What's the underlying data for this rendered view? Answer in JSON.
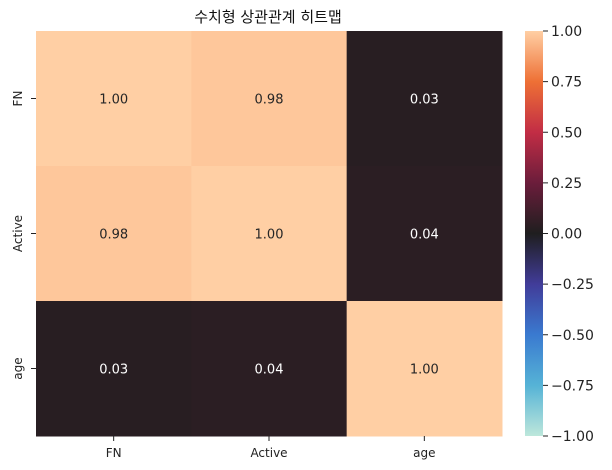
{
  "chart_data": {
    "type": "heatmap",
    "title": "수치형 상관관계 히트맵",
    "xlabel": "",
    "ylabel": "",
    "x_categories": [
      "FN",
      "Active",
      "age"
    ],
    "y_categories": [
      "FN",
      "Active",
      "age"
    ],
    "values": [
      [
        1.0,
        0.98,
        0.03
      ],
      [
        0.98,
        1.0,
        0.04
      ],
      [
        0.03,
        0.04,
        1.0
      ]
    ],
    "annotations": [
      [
        "1.00",
        "0.98",
        "0.03"
      ],
      [
        "0.98",
        "1.00",
        "0.04"
      ],
      [
        "0.03",
        "0.04",
        "1.00"
      ]
    ],
    "vrange": [
      -1.0,
      1.0
    ],
    "colormap": "icefire",
    "colorbar": {
      "ticks": [
        1.0,
        0.75,
        0.5,
        0.25,
        0.0,
        -0.25,
        -0.5,
        -0.75,
        -1.0
      ],
      "tick_labels": [
        "1.00",
        "0.75",
        "0.50",
        "0.25",
        "0.00",
        "−0.25",
        "−0.50",
        "−0.75",
        "−1.00"
      ],
      "stops": [
        {
          "v": -1.0,
          "color": "#bde7db"
        },
        {
          "v": -0.75,
          "color": "#56b3d6"
        },
        {
          "v": -0.5,
          "color": "#3a7ad0"
        },
        {
          "v": -0.25,
          "color": "#413c99"
        },
        {
          "v": 0.0,
          "color": "#1f1e1f"
        },
        {
          "v": 0.25,
          "color": "#6b1d3b"
        },
        {
          "v": 0.5,
          "color": "#c22d45"
        },
        {
          "v": 0.75,
          "color": "#ee7035"
        },
        {
          "v": 1.0,
          "color": "#ffcfa4"
        }
      ]
    }
  }
}
